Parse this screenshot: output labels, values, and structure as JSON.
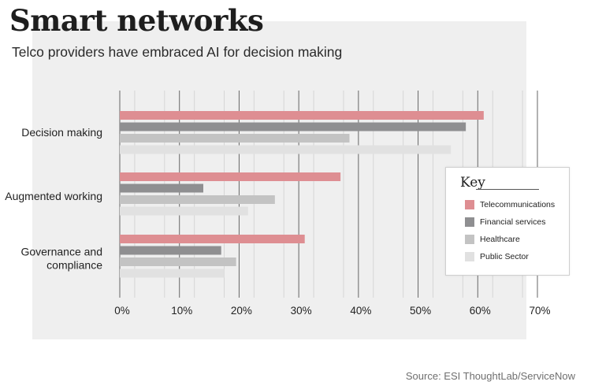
{
  "header": {
    "title": "Smart networks",
    "subtitle": "Telco providers have embraced AI for decision making"
  },
  "source": "Source: ESI ThoughtLab/ServiceNow",
  "legend": {
    "title": "Key",
    "placement": "right",
    "items": [
      {
        "label": "Telecommunications",
        "color": "#de8e92"
      },
      {
        "label": "Financial services",
        "color": "#8f8f91"
      },
      {
        "label": "Healthcare",
        "color": "#c3c3c3"
      },
      {
        "label": "Public Sector",
        "color": "#e1e1e1"
      }
    ]
  },
  "chart_data": {
    "type": "bar",
    "orientation": "horizontal",
    "title": "Smart networks",
    "subtitle": "Telco providers have embraced AI for decision making",
    "categories": [
      "Decision making",
      "Augmented working",
      "Governance and compliance"
    ],
    "category_lines": [
      [
        "Decision making"
      ],
      [
        "Augmented working"
      ],
      [
        "Governance and",
        "compliance"
      ]
    ],
    "series": [
      {
        "name": "Telecommunications",
        "color": "#de8e92",
        "values": [
          61,
          37,
          31
        ]
      },
      {
        "name": "Financial services",
        "color": "#8f8f91",
        "values": [
          58,
          14,
          17
        ]
      },
      {
        "name": "Healthcare",
        "color": "#c3c3c3",
        "values": [
          38.5,
          26,
          19.5
        ]
      },
      {
        "name": "Public Sector",
        "color": "#e1e1e1",
        "values": [
          55.5,
          21.5,
          17.5
        ]
      }
    ],
    "xlim": [
      0,
      70
    ],
    "xticks": [
      0,
      10,
      20,
      30,
      40,
      50,
      60,
      70
    ],
    "xtick_labels": [
      "0%",
      "10%",
      "20%",
      "30%",
      "40%",
      "50%",
      "60%",
      "70%"
    ],
    "grid": true
  }
}
